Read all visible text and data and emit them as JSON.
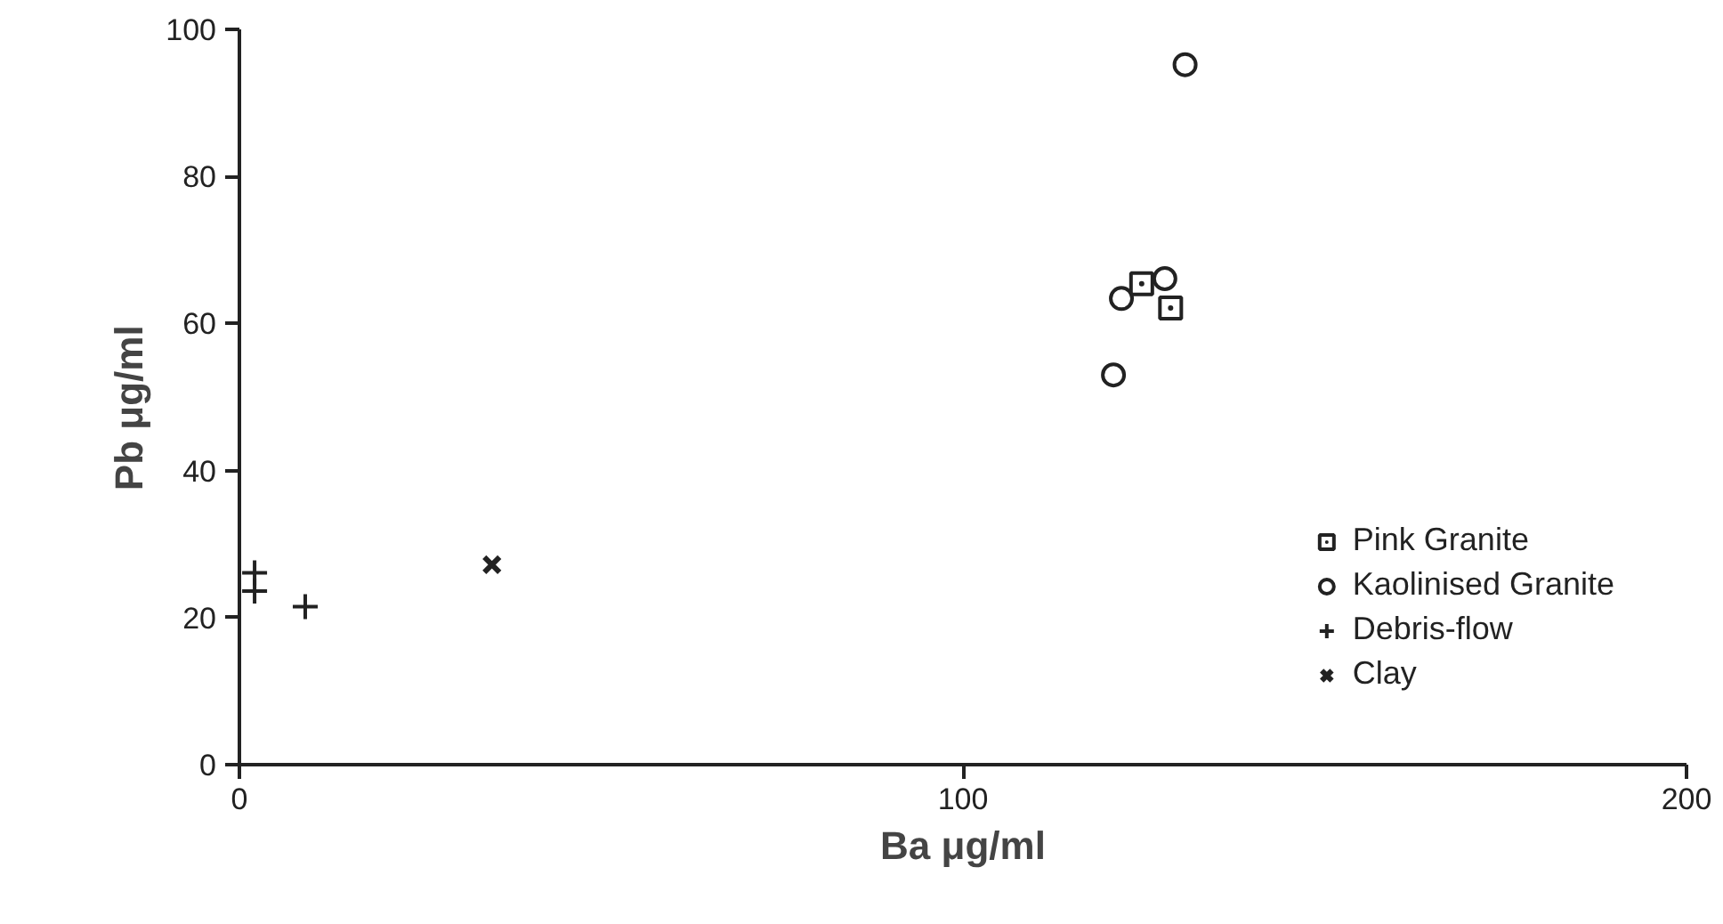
{
  "chart_data": {
    "type": "scatter",
    "xlabel": "Ba μg/ml",
    "ylabel": "Pb   μg/ml",
    "xlim": [
      0,
      200
    ],
    "xticks": [
      0,
      100,
      200
    ],
    "ylim": [
      0,
      100
    ],
    "yticks": [
      0,
      20,
      40,
      60,
      80,
      100
    ],
    "grid": false,
    "legend": "bottom right",
    "series": [
      {
        "name": "Pink Granite",
        "color": "#222222",
        "marker": "square",
        "x": [
          124.7,
          128.7
        ],
        "values": [
          65.4,
          62.1
        ]
      },
      {
        "name": "Kaolinised Granite",
        "color": "#222222",
        "marker": "circle",
        "x": [
          130.7,
          127.9,
          121.9,
          120.8
        ],
        "values": [
          95.2,
          66.1,
          63.4,
          53.0
        ]
      },
      {
        "name": "Debris-flow",
        "color": "#222222",
        "marker": "cross",
        "x": [
          2.1,
          2.1,
          9.1
        ],
        "values": [
          26.1,
          23.6,
          21.5
        ]
      },
      {
        "name": "Clay",
        "color": "#222222",
        "marker": "x",
        "x": [
          34.9
        ],
        "values": [
          27.2
        ]
      }
    ]
  }
}
